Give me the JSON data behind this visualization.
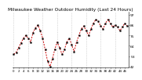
{
  "title": "Milwaukee Weather Outdoor Humidity (Last 24 Hours)",
  "x_values": [
    0,
    1,
    2,
    3,
    4,
    5,
    6,
    7,
    8,
    9,
    10,
    11,
    12,
    13,
    14,
    15,
    16,
    17,
    18,
    19,
    20,
    21,
    22,
    23,
    24,
    25,
    26,
    27,
    28,
    29,
    30,
    31,
    32,
    33,
    34,
    35,
    36,
    37,
    38,
    39,
    40,
    41,
    42,
    43,
    44,
    45,
    46,
    47
  ],
  "y_values": [
    55,
    57,
    62,
    67,
    72,
    75,
    72,
    68,
    78,
    83,
    86,
    80,
    72,
    60,
    48,
    42,
    50,
    60,
    68,
    62,
    55,
    60,
    68,
    72,
    65,
    58,
    68,
    75,
    82,
    85,
    80,
    75,
    82,
    88,
    92,
    90,
    85,
    82,
    88,
    92,
    88,
    84,
    86,
    84,
    80,
    84,
    88,
    85
  ],
  "line_color": "#cc0000",
  "marker_color": "#000000",
  "bg_color": "#ffffff",
  "grid_color": "#bbbbbb",
  "title_fontsize": 4.2,
  "tick_fontsize": 3.2,
  "ylim": [
    41,
    100
  ],
  "yticks": [
    42,
    53,
    64,
    75,
    86,
    97
  ],
  "ytick_labels": [
    "42",
    "53",
    "64",
    "75",
    "86",
    "97"
  ],
  "grid_x_positions": [
    0,
    6,
    12,
    18,
    24,
    30,
    36,
    42,
    48
  ],
  "xlim": [
    -0.5,
    47.5
  ]
}
